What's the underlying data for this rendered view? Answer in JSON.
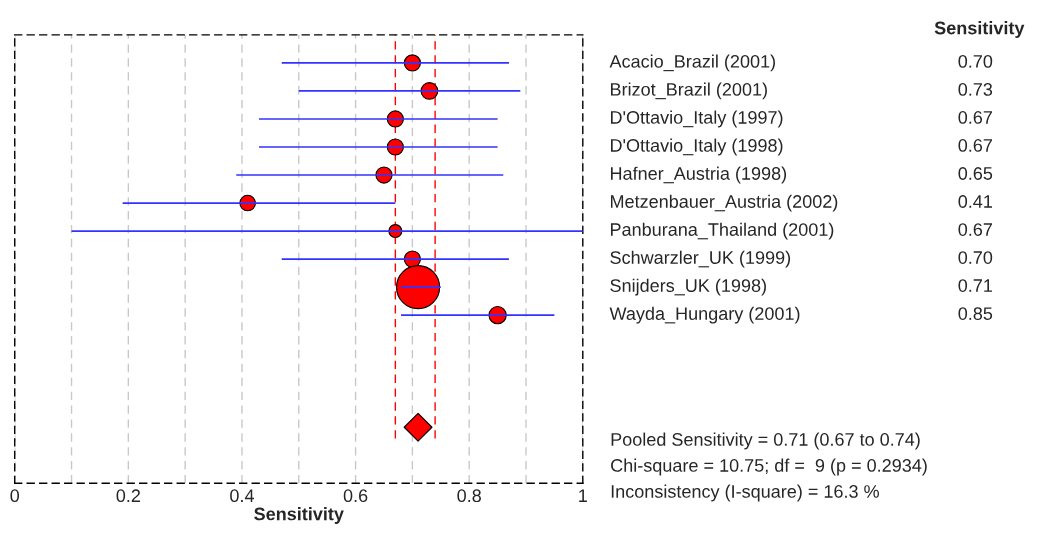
{
  "chart_data": {
    "type": "bubble",
    "orientation": "horizontal",
    "xlabel": "Sensitivity",
    "xlim": [
      0,
      1
    ],
    "xticks": [
      0,
      {
        "value": 0.1,
        "label": null
      },
      0.2,
      {
        "value": 0.3,
        "label": null
      },
      0.4,
      {
        "value": 0.5,
        "label": null
      },
      0.6,
      {
        "value": 0.7,
        "label": null
      },
      0.8,
      {
        "value": 0.9,
        "label": null
      },
      1
    ],
    "grid": "x",
    "legend": false,
    "tick_labels": "x",
    "categories": [
      "Acacio_Brazil (2001)",
      "Brizot_Brazil (2001)",
      "D'Ottavio_Italy (1997)",
      "D'Ottavio_Italy (1998)",
      "Hafner_Austria (1998)",
      "Metzenbauer_Austria (2002)",
      "Panburana_Thailand (2001)",
      "Schwarzler_UK (1999)",
      "Snijders_UK (1998)",
      "Wayda_Hungary (2001)",
      null,
      null,
      null,
      null
    ],
    "series": [
      {
        "color": "#ff0000",
        "values": [
          0.7,
          0.73,
          0.67,
          0.67,
          0.65,
          0.41,
          0.67,
          0.7,
          0.71,
          0.85,
          null,
          null,
          null,
          null
        ],
        "sizes": [
          0.14,
          0.15,
          0.14,
          0.14,
          0.14,
          0.13,
          0.09,
          0.14,
          1,
          0.16,
          null,
          null,
          null,
          null
        ],
        "errors": [
          [
            0.47,
            0.87
          ],
          [
            0.5,
            0.89
          ],
          [
            0.43,
            0.85
          ],
          [
            0.43,
            0.85
          ],
          [
            0.39,
            0.86
          ],
          [
            0.19,
            0.67
          ],
          [
            0.1,
            1.0
          ],
          [
            0.47,
            0.87
          ],
          [
            0.68,
            0.75
          ],
          [
            0.68,
            0.95
          ],
          null,
          null,
          null,
          null
        ],
        "value_labels": [
          "0.70",
          "0.73",
          "0.67",
          "0.67",
          "0.65",
          "0.41",
          "0.67",
          "0.70",
          "0.71",
          "0.85",
          null,
          null,
          null,
          null
        ]
      },
      {
        "type": "scatter",
        "marker": "diamond",
        "color": "#ff0000",
        "values": [
          null,
          null,
          null,
          null,
          null,
          null,
          null,
          null,
          null,
          null,
          null,
          null,
          null,
          0.71
        ]
      }
    ],
    "ref_lines": [
      {
        "axis": "x",
        "value": 0.67,
        "color": "#ff0000",
        "line_style": "dashed"
      },
      {
        "axis": "x",
        "value": 0.74,
        "color": "#ff0000",
        "line_style": "dashed"
      }
    ],
    "annotations": [
      "Sensitivity",
      "Pooled Sensitivity = 0.71 (0.67 to 0.74)",
      "Chi-square = 10.75; df =  9 (p = 0.2934)",
      "Inconsistency (I-square) = 16.3 %"
    ]
  }
}
